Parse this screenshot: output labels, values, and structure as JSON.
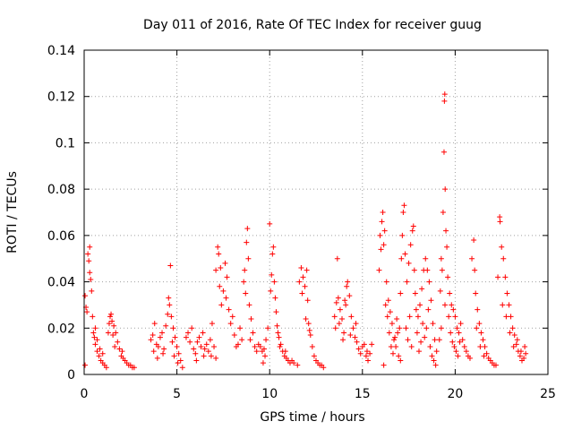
{
  "chart_data": {
    "type": "scatter",
    "title": "Day 011 of 2016, Rate Of TEC Index for receiver guug",
    "xlabel": "GPS time / hours",
    "ylabel": "ROTI / TECUs",
    "xlim": [
      0,
      25
    ],
    "ylim": [
      0,
      0.14
    ],
    "xticks": [
      0,
      5,
      10,
      15,
      20,
      25
    ],
    "xtick_labels": [
      "0",
      "5",
      "10",
      "15",
      "20",
      "25"
    ],
    "yticks": [
      0,
      0.02,
      0.04,
      0.06,
      0.08,
      0.1,
      0.12,
      0.14
    ],
    "ytick_labels": [
      "0",
      "0.02",
      "0.04",
      "0.06",
      "0.08",
      "0.1",
      "0.12",
      "0.14"
    ],
    "grid": true,
    "marker": "+",
    "color": "#ff0000",
    "points": [
      [
        0.05,
        0.034
      ],
      [
        0.1,
        0.029
      ],
      [
        0.15,
        0.027
      ],
      [
        0.2,
        0.052
      ],
      [
        0.25,
        0.049
      ],
      [
        0.3,
        0.044
      ],
      [
        0.35,
        0.041
      ],
      [
        0.3,
        0.055
      ],
      [
        0.4,
        0.036
      ],
      [
        0.45,
        0.025
      ],
      [
        0.5,
        0.018
      ],
      [
        0.55,
        0.016
      ],
      [
        0.6,
        0.013
      ],
      [
        0.7,
        0.01
      ],
      [
        0.8,
        0.008
      ],
      [
        0.9,
        0.006
      ],
      [
        1.0,
        0.005
      ],
      [
        1.1,
        0.004
      ],
      [
        1.2,
        0.003
      ],
      [
        0.05,
        0.004
      ],
      [
        0.6,
        0.02
      ],
      [
        0.7,
        0.015
      ],
      [
        0.85,
        0.011
      ],
      [
        1.0,
        0.009
      ],
      [
        1.3,
        0.018
      ],
      [
        1.35,
        0.022
      ],
      [
        1.4,
        0.025
      ],
      [
        1.5,
        0.023
      ],
      [
        1.6,
        0.021
      ],
      [
        1.7,
        0.018
      ],
      [
        1.8,
        0.014
      ],
      [
        1.9,
        0.011
      ],
      [
        2.0,
        0.008
      ],
      [
        2.1,
        0.007
      ],
      [
        2.2,
        0.006
      ],
      [
        2.3,
        0.005
      ],
      [
        2.4,
        0.004
      ],
      [
        2.5,
        0.004
      ],
      [
        2.6,
        0.003
      ],
      [
        2.7,
        0.003
      ],
      [
        1.45,
        0.026
      ],
      [
        1.55,
        0.017
      ],
      [
        1.65,
        0.012
      ],
      [
        2.05,
        0.01
      ],
      [
        3.6,
        0.015
      ],
      [
        3.7,
        0.017
      ],
      [
        3.8,
        0.022
      ],
      [
        3.9,
        0.013
      ],
      [
        4.0,
        0.012
      ],
      [
        4.1,
        0.016
      ],
      [
        4.2,
        0.018
      ],
      [
        4.3,
        0.011
      ],
      [
        4.4,
        0.021
      ],
      [
        4.5,
        0.026
      ],
      [
        4.55,
        0.033
      ],
      [
        4.6,
        0.03
      ],
      [
        4.65,
        0.047
      ],
      [
        4.7,
        0.025
      ],
      [
        4.8,
        0.02
      ],
      [
        4.9,
        0.016
      ],
      [
        5.0,
        0.012
      ],
      [
        5.1,
        0.009
      ],
      [
        5.2,
        0.006
      ],
      [
        5.3,
        0.003
      ],
      [
        3.75,
        0.01
      ],
      [
        3.95,
        0.007
      ],
      [
        4.25,
        0.009
      ],
      [
        4.75,
        0.014
      ],
      [
        4.85,
        0.008
      ],
      [
        5.05,
        0.005
      ],
      [
        5.5,
        0.016
      ],
      [
        5.7,
        0.014
      ],
      [
        5.9,
        0.011
      ],
      [
        6.0,
        0.009
      ],
      [
        6.1,
        0.014
      ],
      [
        6.2,
        0.016
      ],
      [
        6.3,
        0.012
      ],
      [
        6.4,
        0.018
      ],
      [
        6.5,
        0.011
      ],
      [
        6.6,
        0.013
      ],
      [
        6.7,
        0.01
      ],
      [
        6.8,
        0.015
      ],
      [
        6.9,
        0.022
      ],
      [
        7.0,
        0.012
      ],
      [
        7.1,
        0.007
      ],
      [
        5.6,
        0.018
      ],
      [
        5.8,
        0.02
      ],
      [
        6.05,
        0.006
      ],
      [
        6.45,
        0.008
      ],
      [
        6.85,
        0.008
      ],
      [
        7.1,
        0.045
      ],
      [
        7.2,
        0.055
      ],
      [
        7.25,
        0.052
      ],
      [
        7.3,
        0.038
      ],
      [
        7.4,
        0.03
      ],
      [
        7.5,
        0.036
      ],
      [
        7.6,
        0.048
      ],
      [
        7.7,
        0.042
      ],
      [
        7.8,
        0.028
      ],
      [
        7.9,
        0.022
      ],
      [
        8.0,
        0.025
      ],
      [
        8.1,
        0.017
      ],
      [
        8.2,
        0.012
      ],
      [
        8.3,
        0.013
      ],
      [
        8.5,
        0.015
      ],
      [
        8.6,
        0.04
      ],
      [
        8.7,
        0.035
      ],
      [
        8.75,
        0.057
      ],
      [
        8.8,
        0.063
      ],
      [
        8.85,
        0.05
      ],
      [
        8.9,
        0.03
      ],
      [
        9.0,
        0.024
      ],
      [
        9.1,
        0.018
      ],
      [
        9.2,
        0.012
      ],
      [
        9.3,
        0.01
      ],
      [
        7.35,
        0.046
      ],
      [
        7.65,
        0.033
      ],
      [
        8.4,
        0.02
      ],
      [
        8.65,
        0.045
      ],
      [
        8.95,
        0.015
      ],
      [
        9.4,
        0.013
      ],
      [
        9.5,
        0.012
      ],
      [
        9.6,
        0.01
      ],
      [
        9.7,
        0.011
      ],
      [
        9.8,
        0.015
      ],
      [
        9.9,
        0.02
      ],
      [
        10.0,
        0.065
      ],
      [
        10.1,
        0.043
      ],
      [
        10.15,
        0.052
      ],
      [
        10.2,
        0.055
      ],
      [
        10.25,
        0.04
      ],
      [
        10.3,
        0.033
      ],
      [
        10.35,
        0.027
      ],
      [
        10.4,
        0.021
      ],
      [
        10.5,
        0.016
      ],
      [
        10.6,
        0.013
      ],
      [
        10.7,
        0.01
      ],
      [
        10.8,
        0.008
      ],
      [
        10.9,
        0.007
      ],
      [
        11.0,
        0.006
      ],
      [
        9.65,
        0.005
      ],
      [
        9.75,
        0.008
      ],
      [
        10.05,
        0.036
      ],
      [
        10.45,
        0.018
      ],
      [
        10.55,
        0.012
      ],
      [
        10.85,
        0.01
      ],
      [
        11.1,
        0.005
      ],
      [
        11.2,
        0.006
      ],
      [
        11.3,
        0.005
      ],
      [
        11.5,
        0.004
      ],
      [
        11.6,
        0.04
      ],
      [
        11.7,
        0.046
      ],
      [
        11.8,
        0.042
      ],
      [
        11.9,
        0.038
      ],
      [
        12.0,
        0.045
      ],
      [
        12.05,
        0.032
      ],
      [
        12.1,
        0.022
      ],
      [
        12.2,
        0.017
      ],
      [
        12.3,
        0.012
      ],
      [
        12.4,
        0.008
      ],
      [
        12.5,
        0.006
      ],
      [
        12.6,
        0.005
      ],
      [
        12.7,
        0.004
      ],
      [
        12.8,
        0.004
      ],
      [
        12.9,
        0.003
      ],
      [
        11.75,
        0.035
      ],
      [
        11.95,
        0.024
      ],
      [
        12.15,
        0.019
      ],
      [
        13.5,
        0.025
      ],
      [
        13.6,
        0.031
      ],
      [
        13.65,
        0.05
      ],
      [
        13.7,
        0.033
      ],
      [
        13.8,
        0.028
      ],
      [
        13.9,
        0.024
      ],
      [
        14.0,
        0.018
      ],
      [
        14.1,
        0.03
      ],
      [
        14.15,
        0.038
      ],
      [
        14.2,
        0.04
      ],
      [
        14.3,
        0.034
      ],
      [
        14.4,
        0.025
      ],
      [
        14.5,
        0.02
      ],
      [
        14.6,
        0.016
      ],
      [
        14.7,
        0.014
      ],
      [
        14.8,
        0.011
      ],
      [
        14.9,
        0.009
      ],
      [
        15.0,
        0.012
      ],
      [
        15.1,
        0.013
      ],
      [
        15.2,
        0.008
      ],
      [
        15.3,
        0.006
      ],
      [
        15.4,
        0.009
      ],
      [
        15.5,
        0.013
      ],
      [
        13.55,
        0.02
      ],
      [
        13.75,
        0.022
      ],
      [
        13.95,
        0.015
      ],
      [
        14.05,
        0.032
      ],
      [
        14.35,
        0.017
      ],
      [
        14.65,
        0.022
      ],
      [
        15.25,
        0.01
      ],
      [
        15.9,
        0.045
      ],
      [
        15.95,
        0.06
      ],
      [
        16.0,
        0.054
      ],
      [
        16.05,
        0.066
      ],
      [
        16.1,
        0.07
      ],
      [
        16.15,
        0.056
      ],
      [
        16.2,
        0.062
      ],
      [
        16.3,
        0.04
      ],
      [
        16.4,
        0.032
      ],
      [
        16.5,
        0.027
      ],
      [
        16.6,
        0.022
      ],
      [
        16.7,
        0.015
      ],
      [
        16.8,
        0.012
      ],
      [
        16.9,
        0.018
      ],
      [
        17.0,
        0.02
      ],
      [
        17.05,
        0.035
      ],
      [
        17.1,
        0.05
      ],
      [
        17.15,
        0.06
      ],
      [
        17.2,
        0.07
      ],
      [
        17.25,
        0.073
      ],
      [
        17.3,
        0.052
      ],
      [
        17.4,
        0.04
      ],
      [
        17.5,
        0.048
      ],
      [
        17.6,
        0.056
      ],
      [
        17.7,
        0.062
      ],
      [
        17.75,
        0.064
      ],
      [
        17.8,
        0.045
      ],
      [
        17.85,
        0.035
      ],
      [
        17.9,
        0.028
      ],
      [
        18.0,
        0.025
      ],
      [
        18.1,
        0.03
      ],
      [
        18.2,
        0.037
      ],
      [
        18.3,
        0.045
      ],
      [
        18.4,
        0.05
      ],
      [
        18.5,
        0.045
      ],
      [
        18.6,
        0.04
      ],
      [
        18.7,
        0.032
      ],
      [
        18.8,
        0.022
      ],
      [
        18.9,
        0.015
      ],
      [
        19.0,
        0.01
      ],
      [
        16.25,
        0.03
      ],
      [
        16.35,
        0.025
      ],
      [
        16.45,
        0.018
      ],
      [
        16.55,
        0.012
      ],
      [
        16.65,
        0.009
      ],
      [
        16.75,
        0.016
      ],
      [
        16.85,
        0.024
      ],
      [
        16.95,
        0.008
      ],
      [
        17.35,
        0.02
      ],
      [
        17.45,
        0.015
      ],
      [
        17.55,
        0.025
      ],
      [
        17.65,
        0.012
      ],
      [
        17.95,
        0.018
      ],
      [
        18.05,
        0.01
      ],
      [
        18.15,
        0.014
      ],
      [
        18.25,
        0.022
      ],
      [
        18.35,
        0.016
      ],
      [
        18.45,
        0.02
      ],
      [
        18.55,
        0.028
      ],
      [
        18.65,
        0.012
      ],
      [
        18.75,
        0.008
      ],
      [
        18.85,
        0.006
      ],
      [
        18.95,
        0.004
      ],
      [
        16.15,
        0.004
      ],
      [
        17.05,
        0.006
      ],
      [
        19.2,
        0.036
      ],
      [
        19.25,
        0.05
      ],
      [
        19.3,
        0.045
      ],
      [
        19.35,
        0.07
      ],
      [
        19.4,
        0.096
      ],
      [
        19.42,
        0.118
      ],
      [
        19.44,
        0.121
      ],
      [
        19.46,
        0.08
      ],
      [
        19.5,
        0.062
      ],
      [
        19.55,
        0.055
      ],
      [
        19.6,
        0.042
      ],
      [
        19.7,
        0.035
      ],
      [
        19.8,
        0.03
      ],
      [
        19.9,
        0.028
      ],
      [
        20.0,
        0.025
      ],
      [
        20.1,
        0.02
      ],
      [
        20.2,
        0.018
      ],
      [
        20.3,
        0.022
      ],
      [
        20.4,
        0.015
      ],
      [
        20.5,
        0.012
      ],
      [
        20.6,
        0.01
      ],
      [
        20.7,
        0.008
      ],
      [
        20.8,
        0.007
      ],
      [
        19.15,
        0.015
      ],
      [
        19.25,
        0.02
      ],
      [
        19.45,
        0.03
      ],
      [
        19.65,
        0.025
      ],
      [
        19.75,
        0.018
      ],
      [
        19.85,
        0.014
      ],
      [
        19.95,
        0.012
      ],
      [
        20.05,
        0.01
      ],
      [
        20.15,
        0.008
      ],
      [
        20.25,
        0.014
      ],
      [
        20.9,
        0.05
      ],
      [
        21.0,
        0.058
      ],
      [
        21.05,
        0.045
      ],
      [
        21.1,
        0.035
      ],
      [
        21.2,
        0.028
      ],
      [
        21.3,
        0.022
      ],
      [
        21.4,
        0.018
      ],
      [
        21.5,
        0.015
      ],
      [
        21.6,
        0.012
      ],
      [
        21.7,
        0.009
      ],
      [
        21.8,
        0.007
      ],
      [
        21.9,
        0.006
      ],
      [
        22.0,
        0.005
      ],
      [
        22.1,
        0.004
      ],
      [
        22.2,
        0.004
      ],
      [
        21.15,
        0.02
      ],
      [
        21.35,
        0.012
      ],
      [
        21.55,
        0.008
      ],
      [
        22.3,
        0.042
      ],
      [
        22.4,
        0.068
      ],
      [
        22.42,
        0.066
      ],
      [
        22.5,
        0.055
      ],
      [
        22.6,
        0.05
      ],
      [
        22.7,
        0.042
      ],
      [
        22.8,
        0.035
      ],
      [
        22.9,
        0.03
      ],
      [
        23.0,
        0.025
      ],
      [
        23.1,
        0.02
      ],
      [
        23.2,
        0.017
      ],
      [
        23.3,
        0.013
      ],
      [
        23.4,
        0.01
      ],
      [
        23.5,
        0.008
      ],
      [
        23.6,
        0.006
      ],
      [
        23.7,
        0.007
      ],
      [
        23.8,
        0.009
      ],
      [
        22.55,
        0.03
      ],
      [
        22.75,
        0.025
      ],
      [
        22.95,
        0.018
      ],
      [
        23.15,
        0.012
      ],
      [
        23.35,
        0.015
      ],
      [
        23.55,
        0.01
      ],
      [
        23.75,
        0.012
      ]
    ]
  }
}
